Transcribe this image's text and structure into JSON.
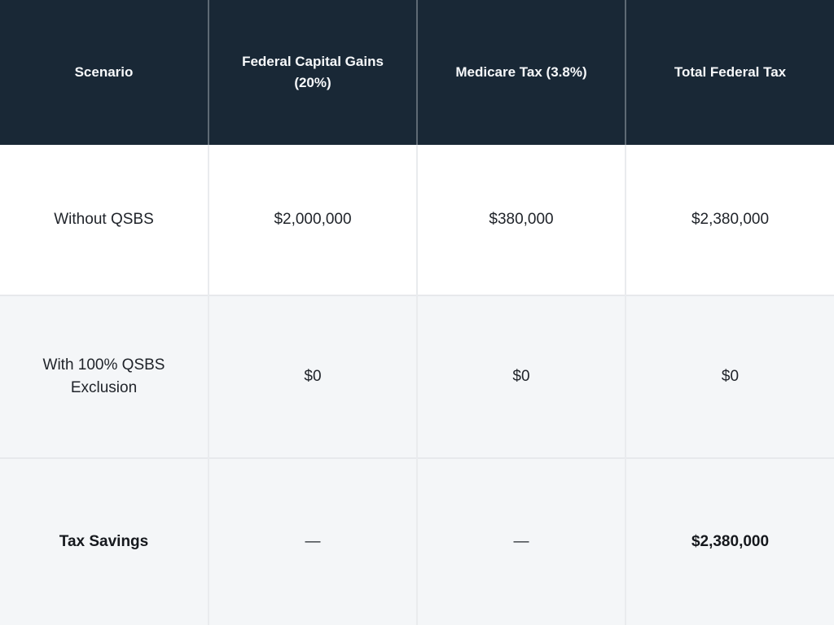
{
  "table": {
    "columns": [
      "Scenario",
      "Federal Capital Gains (20%)",
      "Medicare Tax (3.8%)",
      "Total Federal Tax"
    ],
    "rows": [
      {
        "label": "Without QSBS",
        "values": [
          "$2,000,000",
          "$380,000",
          "$2,380,000"
        ]
      },
      {
        "label": "With 100% QSBS Exclusion",
        "values": [
          "$0",
          "$0",
          "$0"
        ]
      },
      {
        "label": "Tax Savings",
        "values": [
          "—",
          "—",
          "$2,380,000"
        ]
      }
    ]
  },
  "colors": {
    "header_background": "#192836",
    "header_text": "#f7f9fb",
    "row_white_background": "#ffffff",
    "row_alt_background": "#f4f6f8",
    "divider": "#e9ebee",
    "header_divider": "#5e6a74",
    "body_text": "#20242a"
  },
  "chart_data": {
    "type": "table",
    "title": "",
    "columns": [
      "Scenario",
      "Federal Capital Gains (20%)",
      "Medicare Tax (3.8%)",
      "Total Federal Tax"
    ],
    "rows": [
      [
        "Without QSBS",
        "$2,000,000",
        "$380,000",
        "$2,380,000"
      ],
      [
        "With 100% QSBS Exclusion",
        "$0",
        "$0",
        "$0"
      ],
      [
        "Tax Savings",
        "—",
        "—",
        "$2,380,000"
      ]
    ],
    "notes": {
      "bold_cells": [
        [
          "Tax Savings"
        ],
        [
          "$2,380,000 (Tax Savings row, Total Federal Tax column)"
        ]
      ],
      "numeric_values": {
        "without_qsbs": {
          "federal_capital_gains": 2000000,
          "medicare_tax": 380000,
          "total_federal_tax": 2380000
        },
        "with_100pct_qsbs_exclusion": {
          "federal_capital_gains": 0,
          "medicare_tax": 0,
          "total_federal_tax": 0
        },
        "tax_savings": {
          "total_federal_tax": 2380000
        }
      }
    }
  }
}
